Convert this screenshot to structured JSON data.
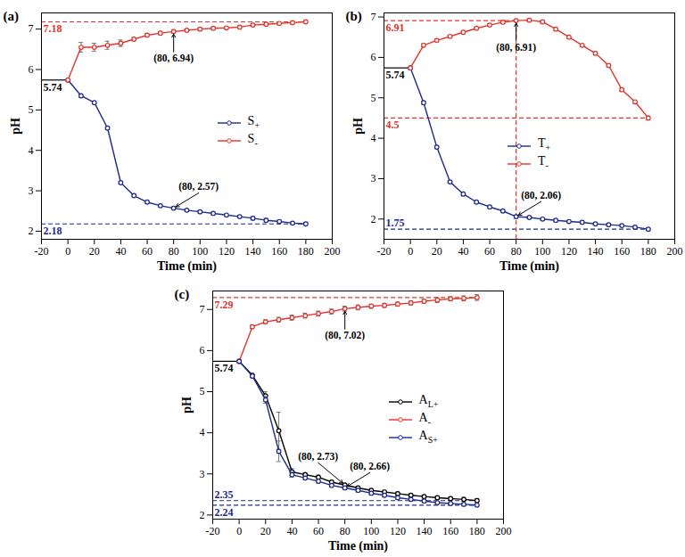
{
  "chart_data": [
    {
      "type": "line",
      "title": "(a)",
      "x_label": "Time (min)",
      "y_label": "pH",
      "x": [
        0,
        10,
        20,
        30,
        40,
        50,
        60,
        70,
        80,
        90,
        100,
        110,
        120,
        130,
        140,
        150,
        160,
        170,
        180
      ],
      "xlim": [
        -20,
        200
      ],
      "xticks": [
        -20,
        0,
        20,
        40,
        60,
        80,
        100,
        120,
        140,
        160,
        180,
        200
      ],
      "ylim": [
        1.8,
        7.4
      ],
      "yticks": [
        2,
        3,
        4,
        5,
        6,
        7
      ],
      "legend": "center-right",
      "marker": "circle",
      "series": [
        {
          "name": "S+",
          "color": "#1c2a8f",
          "values": [
            5.74,
            5.35,
            5.18,
            4.55,
            3.2,
            2.88,
            2.72,
            2.63,
            2.57,
            2.52,
            2.48,
            2.44,
            2.4,
            2.36,
            2.32,
            2.27,
            2.24,
            2.2,
            2.18
          ],
          "errors": [
            0,
            0.04,
            0.03,
            0.03,
            0.03,
            0.03,
            0.03,
            0.03,
            0.03,
            0.03,
            0.03,
            0.03,
            0.03,
            0.03,
            0.04,
            0.05,
            0.03,
            0.03,
            0.03
          ]
        },
        {
          "name": "S-",
          "color": "#e5332a",
          "values": [
            5.74,
            6.55,
            6.55,
            6.6,
            6.65,
            6.75,
            6.85,
            6.9,
            6.94,
            6.97,
            7.0,
            7.02,
            7.03,
            7.05,
            7.1,
            7.12,
            7.14,
            7.16,
            7.18
          ],
          "errors": [
            0,
            0.12,
            0.1,
            0.1,
            0.08,
            0.04,
            0.04,
            0.04,
            0.04,
            0.03,
            0.03,
            0.03,
            0.03,
            0.03,
            0.03,
            0.03,
            0.03,
            0.03,
            0.03
          ]
        }
      ],
      "reference_lines": [
        {
          "y": 5.74,
          "x_range": [
            -20,
            0
          ],
          "label": "5.74",
          "color": "#000000",
          "line_style": "solid"
        },
        {
          "y": 7.18,
          "x_range": [
            -20,
            180
          ],
          "label": "7.18",
          "color": "#e5332a",
          "line_style": "dashed"
        },
        {
          "y": 2.18,
          "x_range": [
            -20,
            180
          ],
          "label": "2.18",
          "color": "#1c2a8f",
          "line_style": "dashed"
        }
      ],
      "annotations": [
        {
          "text": "(80, 6.94)",
          "x": 80,
          "y": 6.94
        },
        {
          "text": "(80, 2.57)",
          "x": 80,
          "y": 2.57
        }
      ]
    },
    {
      "type": "line",
      "title": "(b)",
      "x_label": "Time (min)",
      "y_label": "pH",
      "x": [
        0,
        10,
        20,
        30,
        40,
        50,
        60,
        70,
        80,
        90,
        100,
        110,
        120,
        130,
        140,
        150,
        160,
        170,
        180
      ],
      "xlim": [
        -20,
        200
      ],
      "xticks": [
        -20,
        0,
        20,
        40,
        60,
        80,
        100,
        120,
        140,
        160,
        180,
        200
      ],
      "ylim": [
        1.5,
        7.1
      ],
      "yticks": [
        2,
        3,
        4,
        5,
        6,
        7
      ],
      "legend": "center",
      "marker": "circle",
      "series": [
        {
          "name": "T+",
          "color": "#1c2a8f",
          "values": [
            5.74,
            4.88,
            3.78,
            2.92,
            2.62,
            2.42,
            2.3,
            2.2,
            2.06,
            2.04,
            2.0,
            1.97,
            1.94,
            1.92,
            1.88,
            1.86,
            1.84,
            1.8,
            1.75
          ],
          "errors": [
            0,
            0.04,
            0.04,
            0.03,
            0.05,
            0.03,
            0.03,
            0.03,
            0.04,
            0.03,
            0.03,
            0.03,
            0.03,
            0.03,
            0.03,
            0.03,
            0.03,
            0.03,
            0.03
          ]
        },
        {
          "name": "T-",
          "color": "#e5332a",
          "values": [
            5.74,
            6.3,
            6.42,
            6.52,
            6.62,
            6.72,
            6.8,
            6.87,
            6.91,
            6.92,
            6.88,
            6.7,
            6.5,
            6.3,
            6.1,
            5.8,
            5.2,
            4.9,
            4.5
          ],
          "errors": [
            0,
            0.04,
            0.03,
            0.03,
            0.03,
            0.03,
            0.03,
            0.03,
            0.03,
            0.03,
            0.03,
            0.03,
            0.03,
            0.03,
            0.04,
            0.04,
            0.04,
            0.04,
            0.05
          ]
        }
      ],
      "reference_lines": [
        {
          "y": 5.74,
          "x_range": [
            -20,
            0
          ],
          "label": "5.74",
          "color": "#000000",
          "line_style": "solid"
        },
        {
          "y": 6.91,
          "x_range": [
            -20,
            80
          ],
          "label": "6.91",
          "color": "#e5332a",
          "line_style": "dashed"
        },
        {
          "y": 4.5,
          "x_range": [
            -20,
            180
          ],
          "label": "4.5",
          "color": "#e5332a",
          "line_style": "dashed"
        },
        {
          "y": 1.75,
          "x_range": [
            -20,
            180
          ],
          "label": "1.75",
          "color": "#1c2a8f",
          "line_style": "dashed"
        },
        {
          "x": 80,
          "y_range": [
            1.5,
            6.91
          ],
          "color": "#e5332a",
          "line_style": "dashed"
        }
      ],
      "annotations": [
        {
          "text": "(80, 6.91)",
          "x": 80,
          "y": 6.91
        },
        {
          "text": "(80, 2.06)",
          "x": 80,
          "y": 2.06
        }
      ]
    },
    {
      "type": "line",
      "title": "(c)",
      "x_label": "Time (min)",
      "y_label": "pH",
      "x": [
        0,
        10,
        20,
        30,
        40,
        50,
        60,
        70,
        80,
        90,
        100,
        110,
        120,
        130,
        140,
        150,
        160,
        170,
        180
      ],
      "xlim": [
        -20,
        200
      ],
      "xticks": [
        -20,
        0,
        20,
        40,
        60,
        80,
        100,
        120,
        140,
        160,
        180,
        200
      ],
      "ylim": [
        1.9,
        7.45
      ],
      "yticks": [
        2,
        3,
        4,
        5,
        6,
        7
      ],
      "legend": "center-right",
      "marker": "circle",
      "series": [
        {
          "name": "AL+",
          "color": "#000000",
          "values": [
            5.74,
            5.4,
            4.9,
            4.05,
            3.05,
            2.98,
            2.92,
            2.8,
            2.73,
            2.66,
            2.6,
            2.56,
            2.52,
            2.48,
            2.45,
            2.42,
            2.4,
            2.38,
            2.35
          ],
          "errors": [
            0,
            0.04,
            0.1,
            0.45,
            0.08,
            0.05,
            0.05,
            0.04,
            0.04,
            0.04,
            0.04,
            0.04,
            0.04,
            0.04,
            0.04,
            0.04,
            0.04,
            0.05,
            0.05
          ]
        },
        {
          "name": "A-",
          "color": "#e5332a",
          "values": [
            5.74,
            6.58,
            6.7,
            6.75,
            6.8,
            6.85,
            6.9,
            6.95,
            7.02,
            7.05,
            7.08,
            7.1,
            7.13,
            7.16,
            7.2,
            7.23,
            7.26,
            7.27,
            7.29
          ],
          "errors": [
            0,
            0.04,
            0.05,
            0.06,
            0.06,
            0.06,
            0.06,
            0.06,
            0.06,
            0.06,
            0.05,
            0.05,
            0.05,
            0.05,
            0.05,
            0.06,
            0.05,
            0.06,
            0.07
          ]
        },
        {
          "name": "AS+",
          "color": "#1c2a8f",
          "values": [
            5.74,
            5.38,
            4.8,
            3.55,
            2.98,
            2.9,
            2.82,
            2.72,
            2.66,
            2.6,
            2.53,
            2.48,
            2.42,
            2.38,
            2.34,
            2.3,
            2.28,
            2.26,
            2.24
          ],
          "errors": [
            0,
            0.04,
            0.08,
            0.25,
            0.06,
            0.04,
            0.04,
            0.04,
            0.04,
            0.04,
            0.04,
            0.04,
            0.04,
            0.04,
            0.04,
            0.04,
            0.03,
            0.03,
            0.03
          ]
        }
      ],
      "reference_lines": [
        {
          "y": 5.74,
          "x_range": [
            -20,
            0
          ],
          "label": "5.74",
          "color": "#000000",
          "line_style": "solid"
        },
        {
          "y": 7.29,
          "x_range": [
            -20,
            180
          ],
          "label": "7.29",
          "color": "#e5332a",
          "line_style": "dashed"
        },
        {
          "y": 2.35,
          "x_range": [
            -20,
            180
          ],
          "label": "2.35",
          "color": "#1c2a8f",
          "line_style": "dashed"
        },
        {
          "y": 2.24,
          "x_range": [
            -20,
            180
          ],
          "label": "2.24",
          "color": "#1c2a8f",
          "line_style": "dashed"
        }
      ],
      "annotations": [
        {
          "text": "(80, 7.02)",
          "x": 80,
          "y": 7.02
        },
        {
          "text": "(80, 2.66)",
          "x": 80,
          "y": 2.66
        },
        {
          "text": "(80, 2.73)",
          "x": 80,
          "y": 2.73
        }
      ]
    }
  ]
}
